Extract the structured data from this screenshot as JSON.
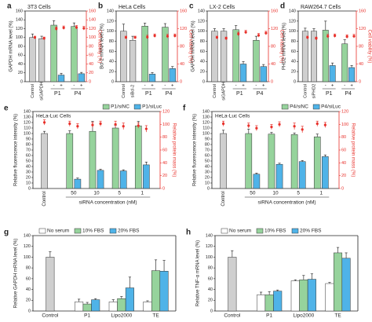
{
  "colors": {
    "gray": "#cfcfcf",
    "green": "#96d39c",
    "blue": "#4fb3e8",
    "white": "#ffffff",
    "red": "#e8302a",
    "axis": "#222222"
  },
  "chart_data": [
    {
      "id": "a",
      "letter": "a",
      "type": "bar",
      "title": "3T3 Cells",
      "ylabel": "GAPDH mRNA level (%)",
      "ylabel_right": "Cell viability (%)",
      "ylim": [
        0,
        160
      ],
      "yticks": [
        0,
        20,
        40,
        60,
        80,
        100,
        120,
        140,
        160
      ],
      "ylim_right": [
        0,
        160
      ],
      "yticks_right": [
        0,
        20,
        40,
        60,
        80,
        100,
        120,
        140,
        160
      ],
      "categories": [
        "Control",
        "siGAPDH",
        "P1 -",
        "P1 +",
        "P4 -",
        "P4 +"
      ],
      "xlabels": [
        "Control",
        "siGAPDH"
      ],
      "group_labels": [
        "P1",
        "P4"
      ],
      "signs": [
        "-",
        "+"
      ],
      "colors": [
        "gray",
        "gray",
        "green",
        "blue",
        "green",
        "blue"
      ],
      "values": [
        100,
        97,
        128,
        15,
        125,
        18
      ],
      "errors": [
        8,
        6,
        10,
        4,
        8,
        3
      ],
      "viability": [
        100,
        98,
        120,
        122,
        123,
        121
      ],
      "viability_errors": [
        3,
        3,
        4,
        4,
        4,
        4
      ]
    },
    {
      "id": "b",
      "letter": "b",
      "type": "bar",
      "title": "HeLa Cells",
      "ylabel": "Bcl-2 mRNA level (%)",
      "ylabel_right": "Cell viability (%)",
      "ylim": [
        0,
        140
      ],
      "yticks": [
        0,
        20,
        40,
        60,
        80,
        100,
        120,
        140
      ],
      "ylim_right": [
        0,
        160
      ],
      "yticks_right": [
        0,
        40,
        80,
        120,
        160
      ],
      "categories": [
        "Control",
        "siBcl-2",
        "P1 -",
        "P1 +",
        "P4 -",
        "P4 +"
      ],
      "xlabels": [
        "Control",
        "siBcl-2"
      ],
      "group_labels": [
        "P1",
        "P4"
      ],
      "signs": [
        "-",
        "+"
      ],
      "colors": [
        "gray",
        "gray",
        "green",
        "blue",
        "green",
        "blue"
      ],
      "values": [
        100,
        82,
        110,
        15,
        108,
        26
      ],
      "errors": [
        14,
        8,
        6,
        3,
        7,
        4
      ],
      "viability": [
        100,
        100,
        101,
        104,
        103,
        104
      ],
      "viability_errors": [
        3,
        3,
        4,
        4,
        4,
        4
      ]
    },
    {
      "id": "c",
      "letter": "c",
      "type": "bar",
      "title": "LX-2 Cells",
      "ylabel": "GAPDH mRNA level (%)",
      "ylabel_right": "Cell viability (%)",
      "ylim": [
        0,
        140
      ],
      "yticks": [
        0,
        20,
        40,
        60,
        80,
        100,
        120,
        140
      ],
      "ylim_right": [
        0,
        160
      ],
      "yticks_right": [
        0,
        40,
        80,
        120,
        160
      ],
      "categories": [
        "Control",
        "siGAPDH",
        "P1 -",
        "P1 +",
        "P4 -",
        "P4 +"
      ],
      "xlabels": [
        "Control",
        "siGAPDH"
      ],
      "group_labels": [
        "P1",
        "P4"
      ],
      "signs": [
        "-",
        "+"
      ],
      "colors": [
        "gray",
        "gray",
        "green",
        "blue",
        "green",
        "blue"
      ],
      "values": [
        100,
        100,
        103,
        35,
        82,
        30
      ],
      "errors": [
        5,
        5,
        8,
        5,
        8,
        4
      ],
      "viability": [
        100,
        98,
        108,
        112,
        105,
        110
      ],
      "viability_errors": [
        3,
        3,
        4,
        4,
        4,
        4
      ]
    },
    {
      "id": "d",
      "letter": "d",
      "type": "bar",
      "title": "RAW264.7 Cells",
      "ylabel": "PHD2 mRNA level (%)",
      "ylabel_right": "Cell viability (%)",
      "ylim": [
        0,
        140
      ],
      "yticks": [
        0,
        20,
        40,
        60,
        80,
        100,
        120,
        140
      ],
      "ylim_right": [
        0,
        160
      ],
      "yticks_right": [
        0,
        40,
        80,
        120,
        160
      ],
      "categories": [
        "Control",
        "siPHD2",
        "P1 -",
        "P1 +",
        "P4 -",
        "P4 +"
      ],
      "xlabels": [
        "Control",
        "siPHD2"
      ],
      "group_labels": [
        "P1",
        "P4"
      ],
      "signs": [
        "-",
        "+"
      ],
      "colors": [
        "gray",
        "gray",
        "green",
        "blue",
        "green",
        "blue"
      ],
      "values": [
        100,
        100,
        102,
        32,
        75,
        28
      ],
      "errors": [
        6,
        5,
        18,
        5,
        8,
        4
      ],
      "viability": [
        100,
        98,
        103,
        104,
        102,
        103
      ],
      "viability_errors": [
        3,
        3,
        4,
        4,
        4,
        4
      ]
    },
    {
      "id": "e",
      "letter": "e",
      "type": "bar",
      "title": "HeLa-Luc Cells",
      "ylabel": "Relative fluorescence intensity (%)",
      "ylabel_right": "Relative protein mass (%)",
      "xlabel": "siRNA concentration (nM)",
      "ylim": [
        0,
        140
      ],
      "yticks": [
        0,
        10,
        20,
        30,
        40,
        50,
        60,
        70,
        80,
        90,
        100,
        110,
        120,
        130,
        140
      ],
      "ylim_right": [
        0,
        120
      ],
      "yticks_right": [
        0,
        20,
        40,
        60,
        80,
        100,
        120
      ],
      "legend": [
        "P1/siNC",
        "P1/siLuc"
      ],
      "control_label": "Control",
      "control_value": 100,
      "control_error": 4,
      "control_protein": 103,
      "control_protein_error": 4,
      "categories": [
        "50",
        "10",
        "5",
        "1"
      ],
      "series": [
        {
          "name": "P1/siNC",
          "color": "green",
          "values": [
            100,
            104,
            110,
            114
          ],
          "errors": [
            5,
            18,
            5,
            8
          ]
        },
        {
          "name": "P1/siLuc",
          "color": "blue",
          "values": [
            17,
            33,
            32,
            43
          ],
          "errors": [
            2,
            2,
            2,
            5
          ]
        }
      ],
      "protein": [
        [
          101,
          97
        ],
        [
          99,
          101
        ],
        [
          100,
          97
        ],
        [
          98,
          93
        ]
      ],
      "protein_errors": [
        [
          4,
          4
        ],
        [
          4,
          4
        ],
        [
          5,
          5
        ],
        [
          4,
          5
        ]
      ]
    },
    {
      "id": "f",
      "letter": "f",
      "type": "bar",
      "title": "HeLa-Luc Cells",
      "ylabel": "Relative fluorescence intensity (%)",
      "ylabel_right": "Relative protein mass (%)",
      "xlabel": "siRNA concentration (nM)",
      "ylim": [
        0,
        140
      ],
      "yticks": [
        0,
        10,
        20,
        30,
        40,
        50,
        60,
        70,
        80,
        90,
        100,
        110,
        120,
        130,
        140
      ],
      "ylim_right": [
        0,
        120
      ],
      "yticks_right": [
        0,
        20,
        40,
        60,
        80,
        100,
        120
      ],
      "legend": [
        "P4/siNC",
        "P4/siLuc"
      ],
      "control_label": "Control",
      "control_value": 100,
      "control_error": 6,
      "control_protein": 101,
      "control_protein_error": 4,
      "categories": [
        "50",
        "10",
        "5",
        "1"
      ],
      "series": [
        {
          "name": "P4/siNC",
          "color": "green",
          "values": [
            100,
            99,
            98,
            94
          ],
          "errors": [
            8,
            3,
            3,
            5
          ]
        },
        {
          "name": "P4/siLuc",
          "color": "blue",
          "values": [
            26,
            44,
            49,
            58
          ],
          "errors": [
            2,
            2,
            2,
            3
          ]
        }
      ],
      "protein": [
        [
          98,
          94
        ],
        [
          96,
          100
        ],
        [
          97,
          92
        ],
        [
          101,
          99
        ]
      ],
      "protein_errors": [
        [
          4,
          4
        ],
        [
          4,
          4
        ],
        [
          5,
          5
        ],
        [
          4,
          4
        ]
      ]
    },
    {
      "id": "g",
      "letter": "g",
      "type": "bar",
      "title": "",
      "ylabel": "Relative GAPDH mRNA level (%)",
      "ylim": [
        0,
        140
      ],
      "yticks": [
        0,
        20,
        40,
        60,
        80,
        100,
        120,
        140
      ],
      "legend": [
        "No serum",
        "10% FBS",
        "20% FBS"
      ],
      "control_label": "Control",
      "control_value": 100,
      "control_error": 10,
      "categories": [
        "P1",
        "Lipo2000",
        "TE"
      ],
      "series": [
        {
          "name": "No serum",
          "color": "white",
          "values": [
            17,
            17,
            17
          ],
          "errors": [
            5,
            4,
            2
          ]
        },
        {
          "name": "10% FBS",
          "color": "green",
          "values": [
            13,
            23,
            75
          ],
          "errors": [
            3,
            4,
            20
          ]
        },
        {
          "name": "20% FBS",
          "color": "blue",
          "values": [
            21,
            43,
            74
          ],
          "errors": [
            2,
            20,
            20
          ]
        }
      ]
    },
    {
      "id": "h",
      "letter": "h",
      "type": "bar",
      "title": "",
      "ylabel": "Relative TNF-α mRNA level (%)",
      "ylim": [
        0,
        140
      ],
      "yticks": [
        0,
        20,
        40,
        60,
        80,
        100,
        120,
        140
      ],
      "legend": [
        "No serum",
        "10% FBS",
        "20% FBS"
      ],
      "control_label": "Control",
      "control_value": 100,
      "control_error": 12,
      "categories": [
        "P1",
        "Lipo2000",
        "TE"
      ],
      "series": [
        {
          "name": "No serum",
          "color": "white",
          "values": [
            30,
            56,
            51
          ],
          "errors": [
            5,
            2,
            2
          ]
        },
        {
          "name": "10% FBS",
          "color": "green",
          "values": [
            30,
            58,
            108
          ],
          "errors": [
            6,
            8,
            10
          ]
        },
        {
          "name": "20% FBS",
          "color": "blue",
          "values": [
            37,
            59,
            98
          ],
          "errors": [
            2,
            10,
            10
          ]
        }
      ]
    }
  ]
}
